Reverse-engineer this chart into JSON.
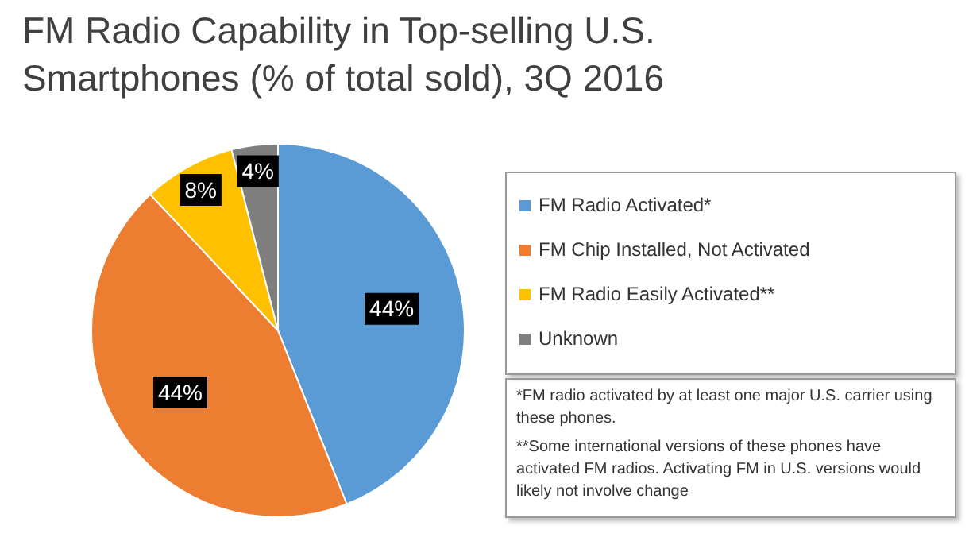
{
  "chart_data": {
    "type": "pie",
    "title": "FM Radio Capability in Top-selling U.S. Smartphones (% of total sold), 3Q 2016",
    "categories": [
      "FM Radio Activated*",
      "FM Chip Installed, Not Activated",
      "FM Radio Easily Activated**",
      "Unknown"
    ],
    "values": [
      44,
      44,
      8,
      4
    ],
    "colors": [
      "#5b9bd5",
      "#ed7d31",
      "#ffc000",
      "#7f7f7f"
    ],
    "value_labels": [
      "44%",
      "44%",
      "8%",
      "4%"
    ],
    "legend": "right",
    "annotations": [
      "*FM radio activated by at least one major U.S. carrier using these phones.",
      "**Some international versions of these phones have activated FM radios. Activating FM in U.S. versions would likely not involve change"
    ]
  }
}
